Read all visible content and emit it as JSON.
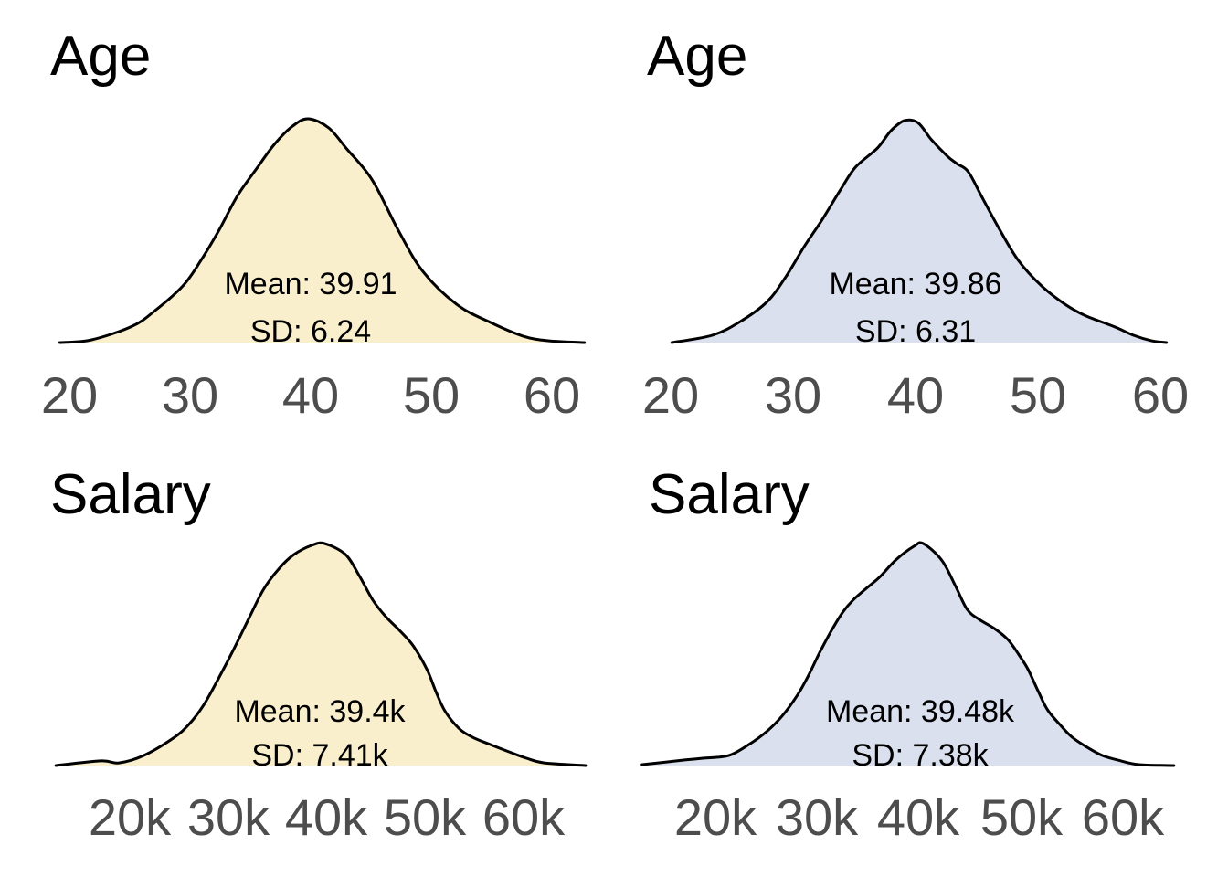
{
  "figure": {
    "background": "#ffffff",
    "colors": {
      "fill_group_a": "#faefcc",
      "fill_group_b": "#dbe0ee",
      "curve_stroke": "#000000",
      "tick_label_color": "#4d4d4d",
      "text_color": "#000000"
    }
  },
  "chart_data": [
    {
      "type": "area",
      "panel": "top_left",
      "title": "Age",
      "fill_color": "#faefcc",
      "line_color": "#000000",
      "mean": 39.91,
      "sd": 6.24,
      "annotation_mean": "Mean: 39.91",
      "annotation_sd": "SD: 6.24",
      "x_tick_labels": [
        "20",
        "30",
        "40",
        "50",
        "60"
      ],
      "x_tick_values": [
        20,
        30,
        40,
        50,
        60
      ],
      "xlim": [
        19,
        63
      ],
      "ylim": [
        0,
        1
      ],
      "grid": false,
      "legend": "none",
      "density": {
        "x": [
          19.2,
          21.8,
          25.2,
          27.1,
          29.4,
          30.9,
          32.4,
          33.9,
          35.5,
          37.0,
          38.5,
          39.8,
          41.5,
          43.0,
          45.1,
          47.3,
          49.3,
          52.1,
          54.9,
          57.6,
          59.7,
          62.7
        ],
        "y": [
          0.0,
          0.012,
          0.073,
          0.143,
          0.253,
          0.367,
          0.502,
          0.653,
          0.776,
          0.886,
          0.967,
          1.0,
          0.959,
          0.865,
          0.727,
          0.498,
          0.318,
          0.171,
          0.09,
          0.029,
          0.008,
          0.0
        ]
      }
    },
    {
      "type": "area",
      "panel": "top_right",
      "title": "Age",
      "fill_color": "#dbe0ee",
      "line_color": "#000000",
      "mean": 39.86,
      "sd": 6.31,
      "annotation_mean": "Mean: 39.86",
      "annotation_sd": "SD: 6.31",
      "x_tick_labels": [
        "20",
        "30",
        "40",
        "50",
        "60"
      ],
      "x_tick_values": [
        20,
        30,
        40,
        50,
        60
      ],
      "xlim": [
        19,
        62
      ],
      "ylim": [
        0,
        1
      ],
      "grid": false,
      "legend": "none",
      "density": {
        "x": [
          20.1,
          23.4,
          25.7,
          27.9,
          29.4,
          30.9,
          32.4,
          33.9,
          35.1,
          36.9,
          38.0,
          39.1,
          40.2,
          41.3,
          42.6,
          43.4,
          44.3,
          45.4,
          46.9,
          48.4,
          50.3,
          52.2,
          53.8,
          56.3,
          57.8,
          59.3,
          60.5
        ],
        "y": [
          0.0,
          0.033,
          0.095,
          0.185,
          0.296,
          0.432,
          0.556,
          0.691,
          0.79,
          0.877,
          0.955,
          1.0,
          0.99,
          0.914,
          0.84,
          0.805,
          0.77,
          0.658,
          0.506,
          0.37,
          0.255,
          0.173,
          0.123,
          0.07,
          0.033,
          0.008,
          0.0
        ]
      }
    },
    {
      "type": "area",
      "panel": "bottom_left",
      "title": "Salary",
      "fill_color": "#faefcc",
      "line_color": "#000000",
      "mean": "39.4k",
      "sd": "7.41k",
      "annotation_mean": "Mean: 39.4k",
      "annotation_sd": "SD: 7.41k",
      "x_tick_labels": [
        "20k",
        "30k",
        "40k",
        "50k",
        "60k"
      ],
      "x_tick_values": [
        20,
        30,
        40,
        50,
        60
      ],
      "xlim": [
        12,
        67
      ],
      "ylim": [
        0,
        1
      ],
      "grid": false,
      "legend": "none",
      "density": {
        "x": [
          12.5,
          17.1,
          18.9,
          21.4,
          24.4,
          26.0,
          27.5,
          29.0,
          30.6,
          32.1,
          33.6,
          35.2,
          36.7,
          38.5,
          39.8,
          41.9,
          43.3,
          44.7,
          46.0,
          47.4,
          48.8,
          50.2,
          51.1,
          52.0,
          53.4,
          54.8,
          56.6,
          58.5,
          60.3,
          62.1,
          66.3
        ],
        "y": [
          0.0,
          0.021,
          0.012,
          0.045,
          0.123,
          0.185,
          0.272,
          0.391,
          0.527,
          0.663,
          0.794,
          0.889,
          0.951,
          0.992,
          1.0,
          0.951,
          0.856,
          0.745,
          0.671,
          0.609,
          0.539,
          0.432,
          0.333,
          0.247,
          0.169,
          0.128,
          0.095,
          0.062,
          0.033,
          0.012,
          0.0
        ]
      }
    },
    {
      "type": "area",
      "panel": "bottom_right",
      "title": "Salary",
      "fill_color": "#dbe0ee",
      "line_color": "#000000",
      "mean": "39.48k",
      "sd": "7.38k",
      "annotation_mean": "Mean: 39.48k",
      "annotation_sd": "SD: 7.38k",
      "x_tick_labels": [
        "20k",
        "30k",
        "40k",
        "50k",
        "60k"
      ],
      "x_tick_values": [
        20,
        30,
        40,
        50,
        60
      ],
      "xlim": [
        12,
        66
      ],
      "ylim": [
        0,
        1
      ],
      "grid": false,
      "legend": "none",
      "density": {
        "x": [
          12.8,
          17.0,
          18.8,
          21.3,
          23.3,
          25.1,
          26.6,
          28.1,
          29.1,
          30.2,
          31.4,
          32.5,
          33.5,
          34.7,
          36.1,
          37.7,
          39.5,
          40.4,
          42.2,
          43.5,
          44.7,
          45.9,
          47.4,
          48.7,
          49.8,
          50.7,
          51.7,
          52.6,
          53.8,
          55.0,
          56.5,
          58.0,
          59.8,
          61.6,
          65.0
        ],
        "y": [
          0.004,
          0.025,
          0.033,
          0.045,
          0.095,
          0.156,
          0.226,
          0.321,
          0.403,
          0.506,
          0.609,
          0.691,
          0.745,
          0.794,
          0.848,
          0.926,
          0.988,
          1.0,
          0.926,
          0.815,
          0.704,
          0.658,
          0.617,
          0.568,
          0.498,
          0.432,
          0.333,
          0.251,
          0.185,
          0.128,
          0.082,
          0.045,
          0.021,
          0.004,
          0.0
        ]
      }
    }
  ]
}
